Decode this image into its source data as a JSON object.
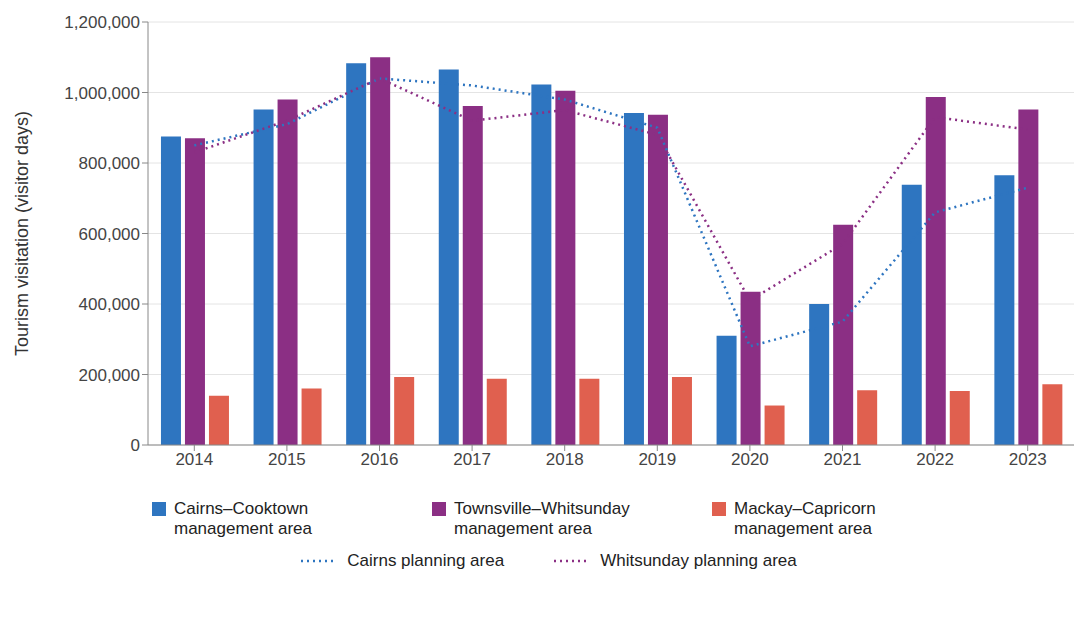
{
  "chart_data": {
    "type": "bar",
    "y_label": "Tourism visitation (visitor days)",
    "categories": [
      "2014",
      "2015",
      "2016",
      "2017",
      "2018",
      "2019",
      "2020",
      "2021",
      "2022",
      "2023"
    ],
    "series": [
      {
        "name": "Cairns–Cooktown management area",
        "type": "bar",
        "color": "#2e75c0",
        "values": [
          875000,
          952000,
          1083000,
          1065000,
          1023000,
          942000,
          310000,
          400000,
          738000,
          765000
        ]
      },
      {
        "name": "Townsville–Whitsunday management area",
        "type": "bar",
        "color": "#8b2f84",
        "values": [
          870000,
          980000,
          1100000,
          962000,
          1005000,
          937000,
          435000,
          625000,
          987000,
          952000
        ]
      },
      {
        "name": "Mackay–Capricorn management area",
        "type": "bar",
        "color": "#e0604f",
        "values": [
          140000,
          160000,
          193000,
          188000,
          188000,
          193000,
          112000,
          155000,
          153000,
          172000
        ]
      },
      {
        "name": "Cairns planning area",
        "type": "line",
        "line_style": "dotted",
        "color": "#2e75c0",
        "values": [
          850000,
          910000,
          1040000,
          1020000,
          980000,
          900000,
          280000,
          350000,
          660000,
          730000
        ]
      },
      {
        "name": "Whitsunday planning area",
        "type": "line",
        "line_style": "dotted",
        "color": "#8b2f84",
        "values": [
          830000,
          920000,
          1040000,
          920000,
          950000,
          880000,
          410000,
          570000,
          930000,
          895000
        ]
      }
    ],
    "ylim": [
      0,
      1200000
    ],
    "yticks": [
      0,
      {
        "value": 200000,
        "label": "200,000"
      },
      {
        "value": 400000,
        "label": "400,000"
      },
      {
        "value": 600000,
        "label": "600,000"
      },
      {
        "value": 800000,
        "label": "800,000"
      },
      {
        "value": 1000000,
        "label": "1,000,000"
      },
      {
        "value": 1200000,
        "label": "1,200,000"
      }
    ],
    "grid": true,
    "legend": "bottom"
  }
}
